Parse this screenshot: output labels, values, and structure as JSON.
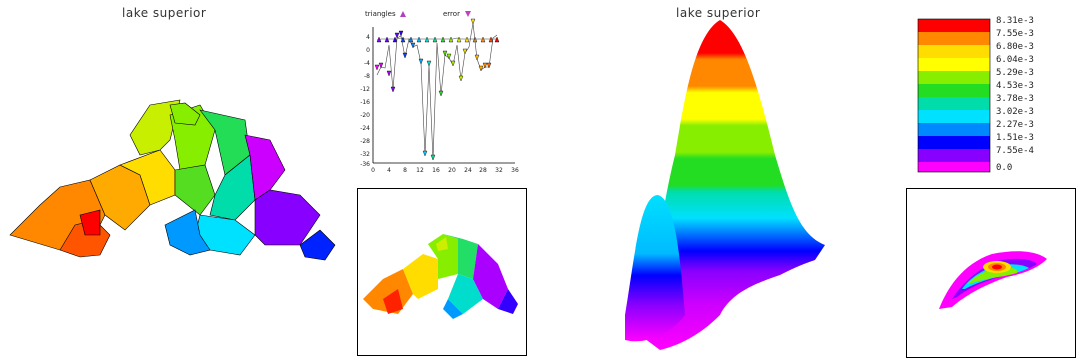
{
  "left_panel": {
    "title": "lake superior"
  },
  "right_panel": {
    "title": "lake superior"
  },
  "error_plot": {
    "legend": [
      {
        "label": "triangles",
        "color": "#b040c0"
      },
      {
        "label": "error",
        "color": "#c040c0"
      }
    ],
    "y_ticks": [
      "4",
      "0",
      "-4",
      "-8",
      "-12",
      "-16",
      "-20",
      "-24",
      "-28",
      "-32",
      "-36"
    ],
    "x_ticks": [
      "0",
      "4",
      "8",
      "12",
      "16",
      "20",
      "24",
      "28",
      "32",
      "36"
    ]
  },
  "colorbar": {
    "labels": [
      "8.31e-3",
      "7.55e-3",
      "6.80e-3",
      "6.04e-3",
      "5.29e-3",
      "4.53e-3",
      "3.78e-3",
      "3.02e-3",
      "2.27e-3",
      "1.51e-3",
      "7.55e-4",
      "0.0"
    ],
    "colors": [
      "#ff0000",
      "#ff8800",
      "#ffdd00",
      "#ffff00",
      "#88ee00",
      "#22dd22",
      "#00ddaa",
      "#00e0ff",
      "#0088ff",
      "#0000ff",
      "#8800ff",
      "#ff00ff"
    ]
  }
}
